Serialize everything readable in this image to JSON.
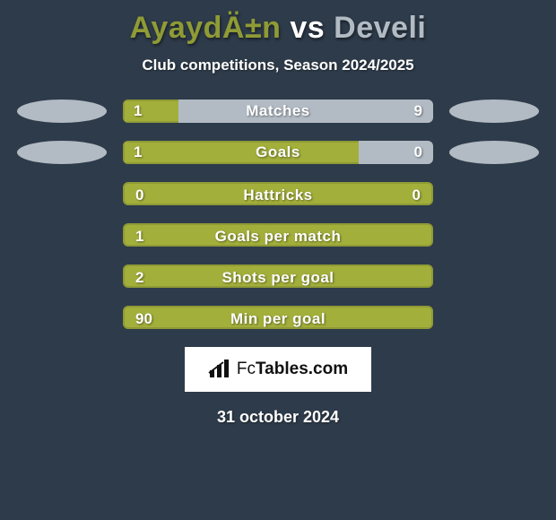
{
  "title": {
    "player1": "AyaydÄ±n",
    "vs": "vs",
    "player2": "Develi",
    "color1": "#8f9b35",
    "vs_color": "#ffffff",
    "color2": "#b2bbc4"
  },
  "subtitle": "Club competitions, Season 2024/2025",
  "colors": {
    "player1": "#8f9b35",
    "player1_fill": "#a3af3b",
    "player2": "#b2bbc4",
    "neutral": "#a3af3b",
    "neutral_border": "#8f9b35",
    "badge_left": "#b2bbc4",
    "badge_right": "#b2bbc4"
  },
  "rows": [
    {
      "label": "Matches",
      "left": "1",
      "right": "9",
      "type": "split",
      "left_pct": 18,
      "right_pct": 82,
      "show_badges": true
    },
    {
      "label": "Goals",
      "left": "1",
      "right": "0",
      "type": "split",
      "left_pct": 76,
      "right_pct": 24,
      "show_badges": true
    },
    {
      "label": "Hattricks",
      "left": "0",
      "right": "0",
      "type": "neutral"
    },
    {
      "label": "Goals per match",
      "left": "1",
      "right": "",
      "type": "neutral"
    },
    {
      "label": "Shots per goal",
      "left": "2",
      "right": "",
      "type": "neutral"
    },
    {
      "label": "Min per goal",
      "left": "90",
      "right": "",
      "type": "neutral"
    }
  ],
  "logo": {
    "prefix": "Fc",
    "suffix": "Tables.com"
  },
  "date": "31 october 2024"
}
